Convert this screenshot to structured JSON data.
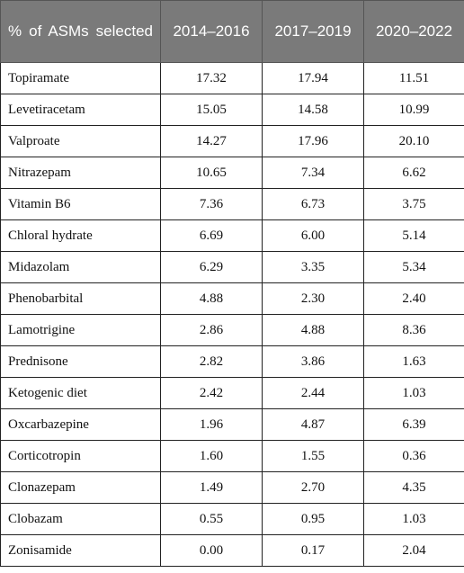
{
  "table": {
    "headers": [
      "% of ASMs selected",
      "2014–2016",
      "2017–2019",
      "2020–2022"
    ],
    "rows": [
      [
        "Topiramate",
        "17.32",
        "17.94",
        "11.51"
      ],
      [
        "Levetiracetam",
        "15.05",
        "14.58",
        "10.99"
      ],
      [
        "Valproate",
        "14.27",
        "17.96",
        "20.10"
      ],
      [
        "Nitrazepam",
        "10.65",
        "7.34",
        "6.62"
      ],
      [
        "Vitamin B6",
        "7.36",
        "6.73",
        "3.75"
      ],
      [
        "Chloral hydrate",
        "6.69",
        "6.00",
        "5.14"
      ],
      [
        "Midazolam",
        "6.29",
        "3.35",
        "5.34"
      ],
      [
        "Phenobarbital",
        "4.88",
        "2.30",
        "2.40"
      ],
      [
        "Lamotrigine",
        "2.86",
        "4.88",
        "8.36"
      ],
      [
        "Prednisone",
        "2.82",
        "3.86",
        "1.63"
      ],
      [
        "Ketogenic diet",
        "2.42",
        "2.44",
        "1.03"
      ],
      [
        "Oxcarbazepine",
        "1.96",
        "4.87",
        "6.39"
      ],
      [
        "Corticotropin",
        "1.60",
        "1.55",
        "0.36"
      ],
      [
        "Clonazepam",
        "1.49",
        "2.70",
        "4.35"
      ],
      [
        "Clobazam",
        "0.55",
        "0.95",
        "1.03"
      ],
      [
        "Zonisamide",
        "0.00",
        "0.17",
        "2.04"
      ]
    ]
  }
}
